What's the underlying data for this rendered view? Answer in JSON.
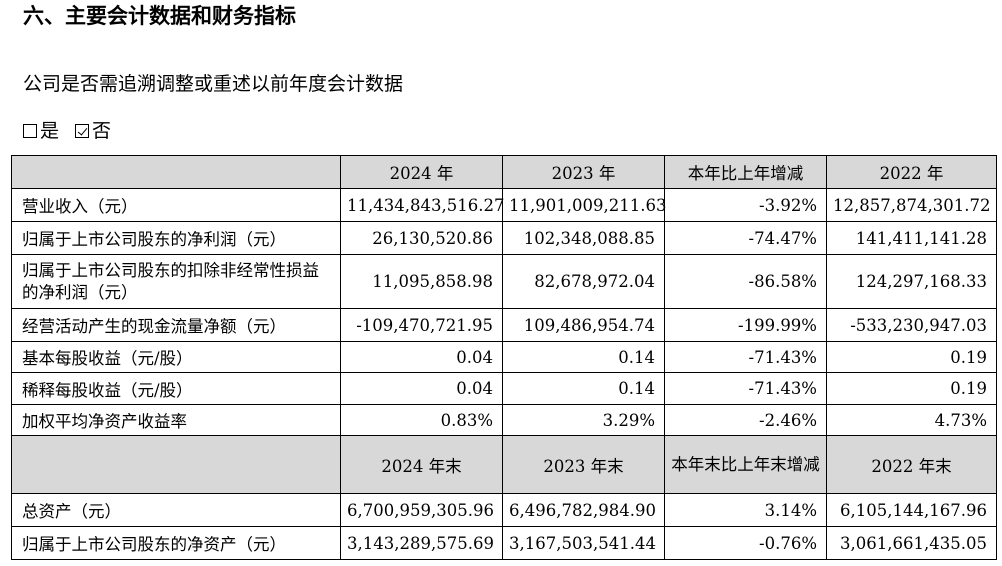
{
  "section_title": "六、主要会计数据和财务指标",
  "question": "公司是否需追溯调整或重述以前年度会计数据",
  "options": {
    "yes_label": "是",
    "no_label": "否",
    "selected": "否"
  },
  "table": {
    "header1": [
      "",
      "2024 年",
      "2023 年",
      "本年比上年增减",
      "2022 年"
    ],
    "rows1": [
      {
        "label": "营业收入（元）",
        "v2024": "11,434,843,516.27",
        "v2023": "11,901,009,211.63",
        "change": "-3.92%",
        "v2022": "12,857,874,301.72"
      },
      {
        "label": "归属于上市公司股东的净利润（元）",
        "v2024": "26,130,520.86",
        "v2023": "102,348,088.85",
        "change": "-74.47%",
        "v2022": "141,411,141.28"
      },
      {
        "label": "归属于上市公司股东的扣除非经常性损益的净利润（元）",
        "v2024": "11,095,858.98",
        "v2023": "82,678,972.04",
        "change": "-86.58%",
        "v2022": "124,297,168.33"
      },
      {
        "label": "经营活动产生的现金流量净额（元）",
        "v2024": "-109,470,721.95",
        "v2023": "109,486,954.74",
        "change": "-199.99%",
        "v2022": "-533,230,947.03"
      },
      {
        "label": "基本每股收益（元/股）",
        "v2024": "0.04",
        "v2023": "0.14",
        "change": "-71.43%",
        "v2022": "0.19"
      },
      {
        "label": "稀释每股收益（元/股）",
        "v2024": "0.04",
        "v2023": "0.14",
        "change": "-71.43%",
        "v2022": "0.19"
      },
      {
        "label": "加权平均净资产收益率",
        "v2024": "0.83%",
        "v2023": "3.29%",
        "change": "-2.46%",
        "v2022": "4.73%"
      }
    ],
    "header2": [
      "",
      "2024 年末",
      "2023 年末",
      "本年末比上年末增减",
      "2022 年末"
    ],
    "rows2": [
      {
        "label": "总资产（元）",
        "v2024": "6,700,959,305.96",
        "v2023": "6,496,782,984.90",
        "change": "3.14%",
        "v2022": "6,105,144,167.96"
      },
      {
        "label": "归属于上市公司股东的净资产（元）",
        "v2024": "3,143,289,575.69",
        "v2023": "3,167,503,541.44",
        "change": "-0.76%",
        "v2022": "3,061,661,435.05"
      }
    ]
  }
}
